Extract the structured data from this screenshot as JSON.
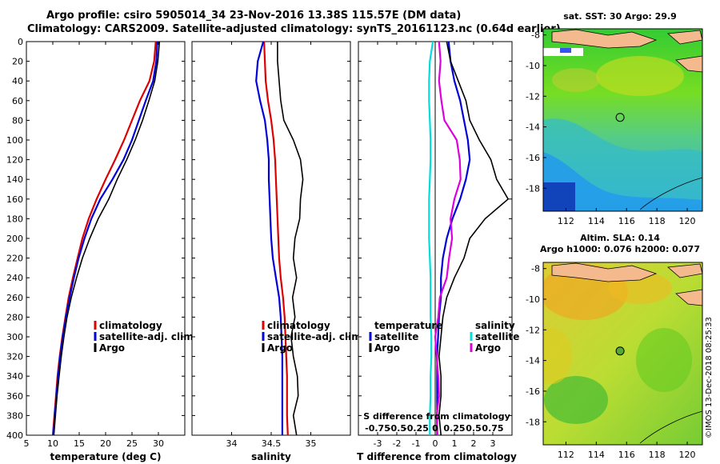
{
  "header": {
    "title_line1": "Argo profile: csiro 5905014_34 23-Nov-2016 13.38S 115.57E (DM data)",
    "title_line2": "Climatology: CARS2009. Satellite-adjusted climatology: synTS_20161123.nc (0.64d earlier)"
  },
  "watermark": "©IMOS 13-Dec-2018 08:25:33",
  "colors": {
    "climatology": "#dd0000",
    "satellite": "#0000dd",
    "argo": "#000000",
    "salinity_sat": "#00dddd",
    "salinity_argo": "#dd00dd"
  },
  "chart_data": [
    {
      "type": "line",
      "name": "temperature",
      "xlabel": "temperature (deg C)",
      "xlim": [
        5,
        35
      ],
      "ylim": [
        0,
        400
      ],
      "xticks": [
        "5",
        "10",
        "15",
        "20",
        "25",
        "30"
      ],
      "xtick_values": [
        5,
        10,
        15,
        20,
        25,
        30
      ],
      "yticks": [
        0,
        20,
        40,
        60,
        80,
        100,
        120,
        140,
        160,
        180,
        200,
        220,
        240,
        260,
        280,
        300,
        320,
        340,
        360,
        380,
        400
      ],
      "legend": [
        "climatology",
        "satellite-adj. clim.",
        "Argo"
      ],
      "depth": [
        0,
        20,
        40,
        60,
        80,
        100,
        120,
        140,
        160,
        180,
        200,
        220,
        240,
        260,
        280,
        300,
        320,
        340,
        360,
        380,
        400
      ],
      "series": [
        {
          "name": "climatology",
          "color": "#dd0000",
          "values": [
            29.5,
            29.2,
            28.3,
            26.5,
            25.0,
            23.5,
            21.8,
            20.0,
            18.3,
            16.8,
            15.6,
            14.7,
            13.8,
            13.0,
            12.4,
            11.8,
            11.3,
            10.9,
            10.6,
            10.3,
            10.0
          ]
        },
        {
          "name": "satellite-adj. clim.",
          "color": "#0000dd",
          "values": [
            29.8,
            29.6,
            29.0,
            27.6,
            26.3,
            25.0,
            23.4,
            21.3,
            19.0,
            17.3,
            16.0,
            14.9,
            14.0,
            13.2,
            12.5,
            11.9,
            11.4,
            11.0,
            10.7,
            10.4,
            10.1
          ]
        },
        {
          "name": "Argo",
          "color": "#000000",
          "values": [
            30.2,
            29.9,
            29.3,
            28.2,
            27.0,
            25.6,
            24.0,
            22.2,
            20.6,
            18.6,
            17.0,
            15.6,
            14.5,
            13.5,
            12.7,
            12.1,
            11.6,
            11.2,
            10.8,
            10.5,
            10.2
          ]
        }
      ]
    },
    {
      "type": "line",
      "name": "salinity",
      "xlabel": "salinity",
      "xlim": [
        33.5,
        35.5
      ],
      "ylim": [
        0,
        400
      ],
      "xticks": [
        "34",
        "34.5",
        "35"
      ],
      "xtick_values": [
        34,
        34.5,
        35
      ],
      "legend": [
        "climatology",
        "satellite-adj. clim.",
        "Argo"
      ],
      "depth": [
        0,
        20,
        40,
        60,
        80,
        100,
        120,
        140,
        160,
        180,
        200,
        220,
        240,
        260,
        280,
        300,
        320,
        340,
        360,
        380,
        400
      ],
      "series": [
        {
          "name": "climatology",
          "color": "#dd0000",
          "values": [
            34.41,
            34.42,
            34.43,
            34.46,
            34.5,
            34.53,
            34.55,
            34.56,
            34.57,
            34.58,
            34.59,
            34.6,
            34.62,
            34.65,
            34.67,
            34.68,
            34.69,
            34.7,
            34.7,
            34.7,
            34.71
          ]
        },
        {
          "name": "satellite-adj. clim.",
          "color": "#0000dd",
          "values": [
            34.4,
            34.33,
            34.31,
            34.36,
            34.42,
            34.45,
            34.47,
            34.47,
            34.48,
            34.49,
            34.5,
            34.52,
            34.56,
            34.6,
            34.62,
            34.63,
            34.64,
            34.64,
            34.64,
            34.64,
            34.64
          ]
        },
        {
          "name": "Argo",
          "color": "#000000",
          "values": [
            34.58,
            34.58,
            34.6,
            34.62,
            34.66,
            34.78,
            34.87,
            34.9,
            34.87,
            34.86,
            34.8,
            34.78,
            34.82,
            34.77,
            34.8,
            34.75,
            34.78,
            34.83,
            34.84,
            34.78,
            34.82
          ]
        }
      ]
    },
    {
      "type": "line",
      "name": "differences",
      "xlabel": "T difference from climatology",
      "xlim": [
        -4,
        4
      ],
      "ylim": [
        0,
        400
      ],
      "xticks": [
        "-3",
        "-2",
        "-1",
        "0",
        "1",
        "2",
        "3"
      ],
      "xtick_values": [
        -3,
        -2,
        -1,
        0,
        1,
        2,
        3
      ],
      "s_axis_label": "S difference from climatology",
      "s_ticks": [
        "-0.75",
        "-0.5",
        "-0.25",
        "0",
        "0.25",
        "0.5",
        "0.75"
      ],
      "legend_temperature": {
        "title": "temperature",
        "items": [
          "satellite",
          "Argo"
        ]
      },
      "legend_salinity": {
        "title": "salinity",
        "items": [
          "satellite",
          "Argo"
        ]
      },
      "depth": [
        0,
        20,
        40,
        60,
        80,
        100,
        120,
        140,
        160,
        180,
        200,
        220,
        240,
        260,
        280,
        300,
        320,
        340,
        360,
        380,
        400
      ],
      "series": [
        {
          "name": "T satellite",
          "color": "#0000dd",
          "values": [
            0.7,
            0.8,
            1.0,
            1.3,
            1.5,
            1.7,
            1.8,
            1.6,
            1.3,
            0.9,
            0.6,
            0.4,
            0.3,
            0.3,
            0.2,
            0.15,
            0.1,
            0.1,
            0.1,
            0.1,
            0.1
          ]
        },
        {
          "name": "T Argo",
          "color": "#000000",
          "values": [
            0.6,
            0.8,
            1.2,
            1.6,
            1.8,
            2.3,
            2.9,
            3.2,
            3.8,
            2.6,
            1.8,
            1.5,
            1.0,
            0.6,
            0.4,
            0.3,
            0.2,
            0.3,
            0.3,
            0.2,
            0.3
          ]
        },
        {
          "name": "S satellite",
          "color": "#00dddd",
          "values": [
            -0.03,
            -0.07,
            -0.08,
            -0.08,
            -0.07,
            -0.06,
            -0.06,
            -0.07,
            -0.08,
            -0.08,
            -0.08,
            -0.07,
            -0.06,
            -0.06,
            -0.06,
            -0.05,
            -0.05,
            -0.06,
            -0.06,
            -0.07,
            -0.07
          ]
        },
        {
          "name": "S Argo",
          "color": "#dd00dd",
          "values": [
            0.05,
            0.07,
            0.05,
            0.08,
            0.12,
            0.28,
            0.32,
            0.33,
            0.25,
            0.2,
            0.22,
            0.18,
            0.15,
            0.06,
            0.04,
            0.0,
            0.02,
            0.04,
            0.05,
            0.02,
            0.03
          ]
        }
      ]
    },
    {
      "type": "heatmap",
      "name": "sst_map",
      "title": "sat. SST: 30 Argo: 29.9",
      "xlim": [
        110.5,
        121
      ],
      "ylim": [
        -19.5,
        -7.6
      ],
      "xticks": [
        "112",
        "114",
        "116",
        "118",
        "120"
      ],
      "xtick_values": [
        112,
        114,
        116,
        118,
        120
      ],
      "yticks": [
        "-8",
        "-10",
        "-12",
        "-14",
        "-16",
        "-18"
      ],
      "ytick_values": [
        -8,
        -10,
        -12,
        -14,
        -16,
        -18
      ],
      "float_position": {
        "lon": 115.57,
        "lat": -13.38
      }
    },
    {
      "type": "heatmap",
      "name": "sla_map",
      "title_line1": "Altim. SLA: 0.14",
      "title_line2": "Argo h1000: 0.076 h2000: 0.077",
      "xlim": [
        110.5,
        121
      ],
      "ylim": [
        -19.5,
        -7.6
      ],
      "xticks": [
        "112",
        "114",
        "116",
        "118",
        "120"
      ],
      "xtick_values": [
        112,
        114,
        116,
        118,
        120
      ],
      "yticks": [
        "-8",
        "-10",
        "-12",
        "-14",
        "-16",
        "-18"
      ],
      "ytick_values": [
        -8,
        -10,
        -12,
        -14,
        -16,
        -18
      ],
      "float_position": {
        "lon": 115.57,
        "lat": -13.38
      }
    }
  ]
}
